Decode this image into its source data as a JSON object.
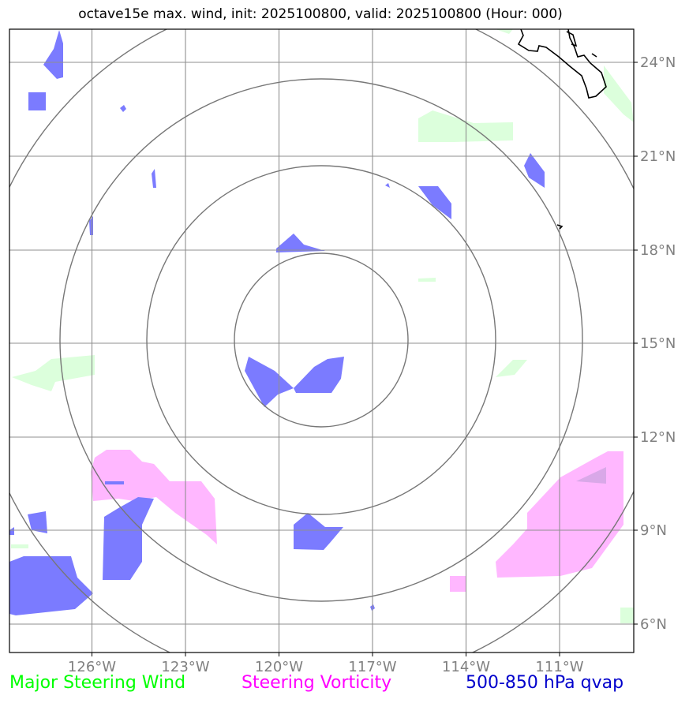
{
  "title": "octave15e max. wind, init: 2025100800, valid: 2025100800 (Hour: 000)",
  "map": {
    "lon_labels": [
      "126°W",
      "123°W",
      "120°W",
      "117°W",
      "114°W",
      "111°W"
    ],
    "lat_labels": [
      "24°N",
      "21°N",
      "18°N",
      "15°N",
      "12°N",
      "9°N",
      "6°N"
    ],
    "center": {
      "lon": "118.7°W",
      "lat": "15.1°N"
    },
    "range_rings": 4
  },
  "legend": {
    "wind": {
      "label": "Major Steering Wind",
      "color": "#00ff00"
    },
    "vorticity": {
      "label": "Steering Vorticity",
      "color": "#ff00ff"
    },
    "qvap": {
      "label": "500-850 hPa qvap",
      "color": "#0000cc"
    }
  },
  "colors": {
    "wind_fill": "#dcffdc",
    "vorticity_fill": "#ffb7ff",
    "qvap_fill": "#7b7bff",
    "grid": "#8f8f8f",
    "ring": "#777777"
  }
}
